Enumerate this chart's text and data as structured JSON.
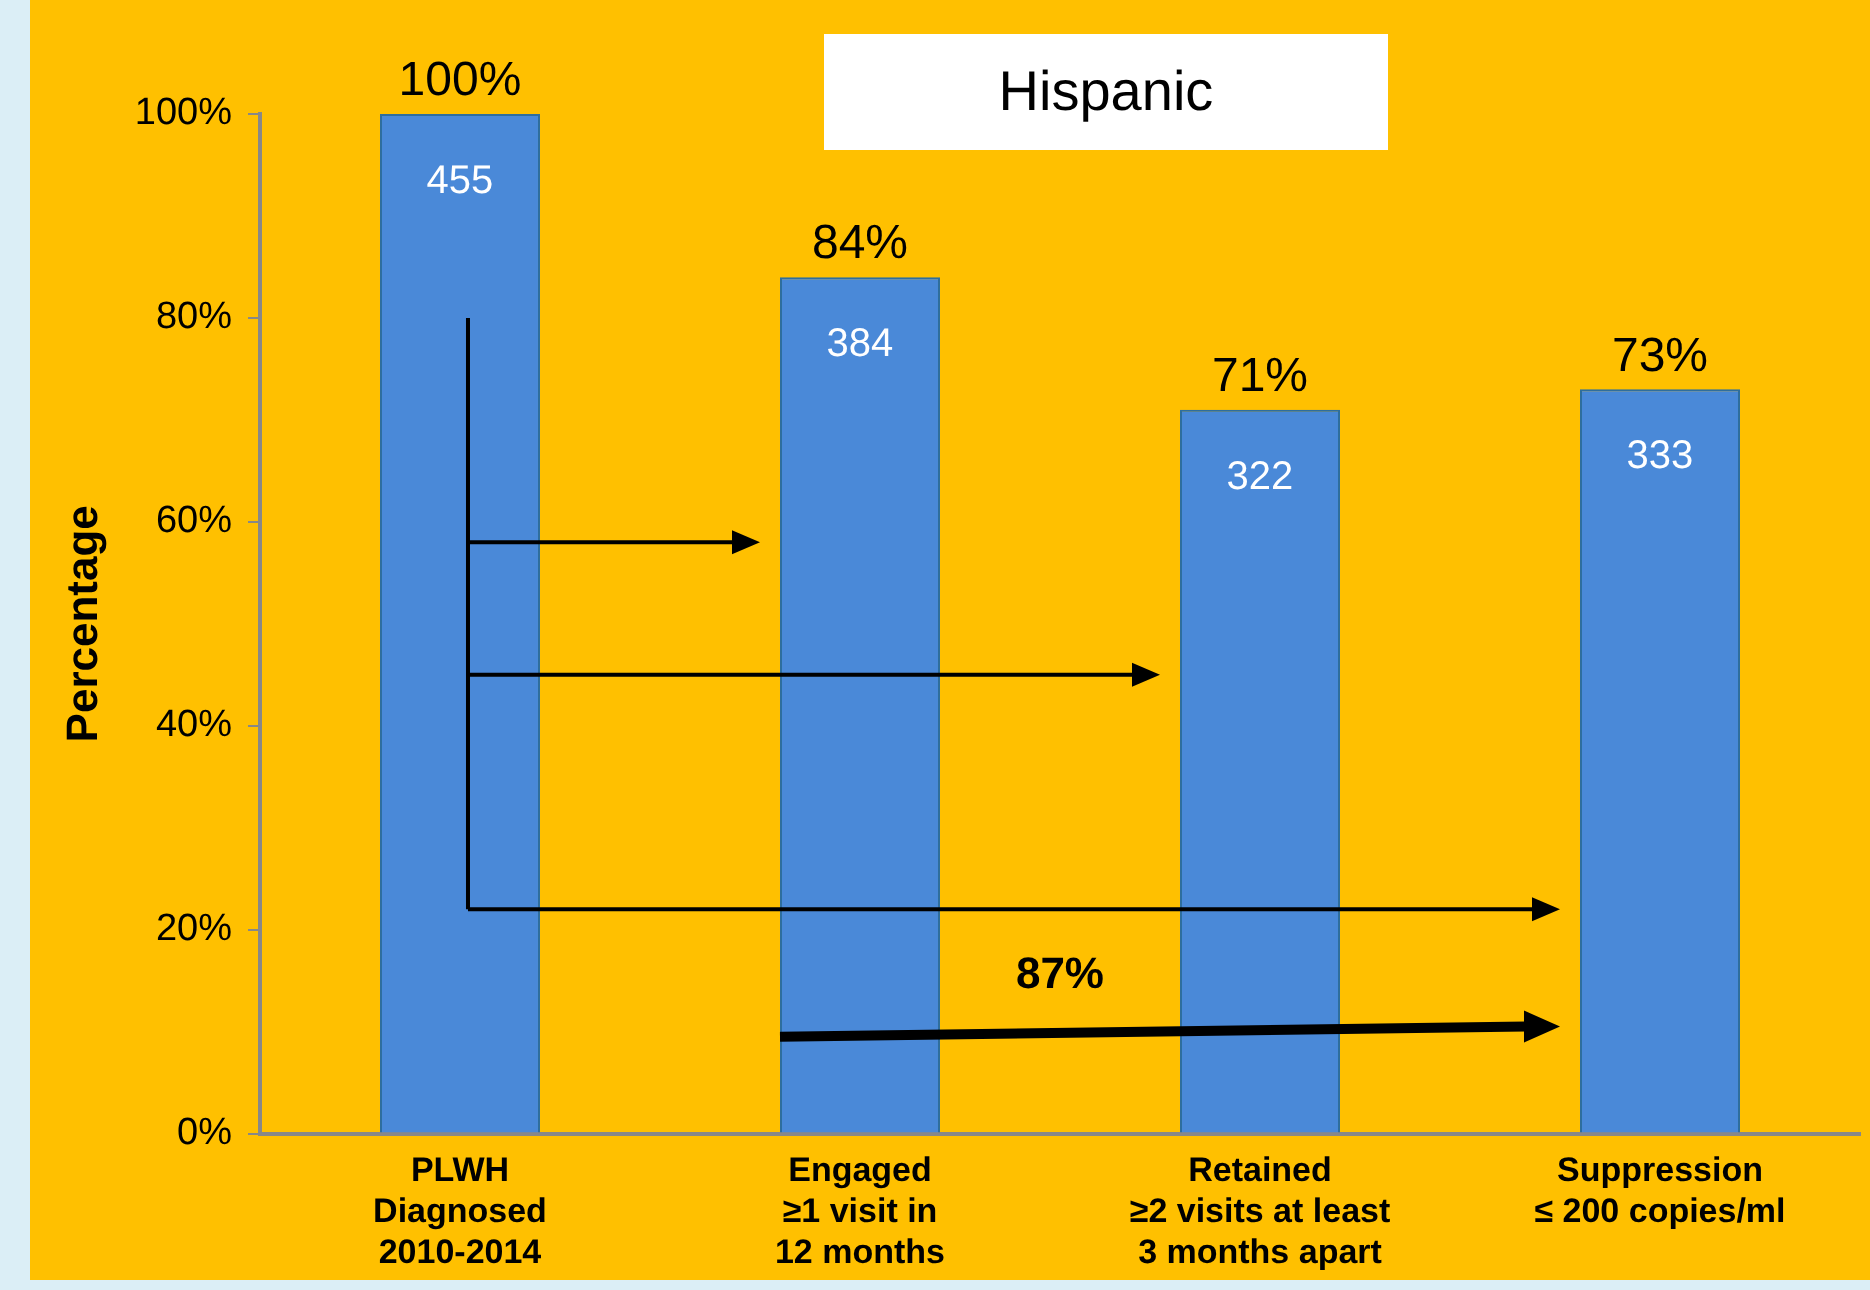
{
  "chart_data": {
    "type": "bar",
    "title": "Hispanic",
    "ylabel": "Percentage",
    "categories": [
      "PLWH\nDiagnosed\n2010-2014",
      "Engaged\n≥1 visit in\n12 months",
      "Retained\n≥2 visits at least\n3 months apart",
      "Suppression\n≤ 200 copies/ml"
    ],
    "values": [
      100,
      84,
      71,
      73
    ],
    "color": "#4a89d8",
    "value_labels": [
      "100%",
      "84%",
      "71%",
      "73%"
    ],
    "annotations": [
      "455",
      "384",
      "322",
      "333",
      "87%"
    ],
    "ylim": [
      0,
      100
    ],
    "yticks": [
      {
        "value": 0,
        "label": "0%"
      },
      {
        "value": 20,
        "label": "20%"
      },
      {
        "value": 40,
        "label": "40%"
      },
      {
        "value": 60,
        "label": "60%"
      },
      {
        "value": 80,
        "label": "80%"
      },
      {
        "value": 100,
        "label": "100%"
      }
    ],
    "grid": false,
    "legend": false
  }
}
